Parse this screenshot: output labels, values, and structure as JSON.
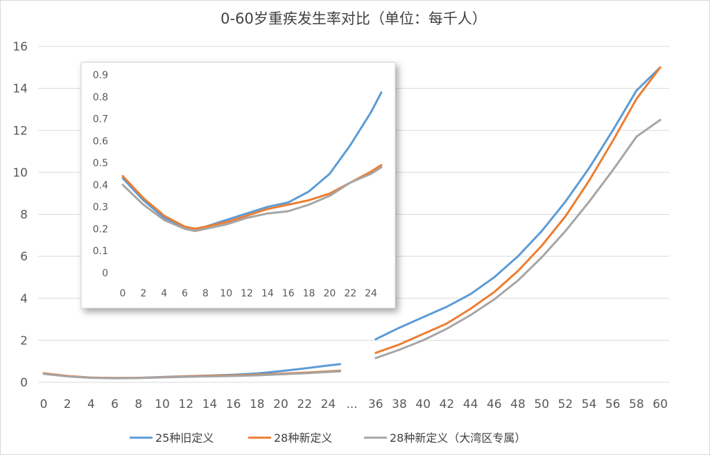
{
  "chart_data": [
    {
      "type": "line",
      "title": "0-60岁重疾发生率对比（单位：每千人）",
      "y_ticks": [
        "0",
        "2",
        "4",
        "6",
        "8",
        "10",
        "12",
        "14",
        "16"
      ],
      "ylim": [
        0,
        16
      ],
      "x_ticks": [
        "0",
        "2",
        "4",
        "6",
        "8",
        "10",
        "12",
        "14",
        "16",
        "18",
        "20",
        "22",
        "24",
        "...",
        "36",
        "38",
        "40",
        "42",
        "44",
        "46",
        "48",
        "50",
        "52",
        "54",
        "56",
        "58",
        "60"
      ],
      "axis_break_label": "...",
      "grid": true,
      "legend_position": "bottom",
      "segments": [
        {
          "x": [
            0,
            2,
            4,
            6,
            8,
            10,
            12,
            14,
            16,
            18,
            20,
            22,
            24,
            25
          ],
          "series": [
            {
              "name": "25种旧定义",
              "color": "#5b9bd5",
              "values": [
                0.42,
                0.29,
                0.22,
                0.2,
                0.21,
                0.25,
                0.29,
                0.32,
                0.36,
                0.42,
                0.53,
                0.66,
                0.8,
                0.86
              ]
            },
            {
              "name": "28种新定义",
              "color": "#ed7d31",
              "values": [
                0.43,
                0.3,
                0.22,
                0.2,
                0.21,
                0.24,
                0.28,
                0.31,
                0.33,
                0.36,
                0.41,
                0.46,
                0.52,
                0.55
              ]
            },
            {
              "name": "28种新定义（大湾区专属）",
              "color": "#a5a5a5",
              "values": [
                0.4,
                0.28,
                0.21,
                0.19,
                0.2,
                0.23,
                0.26,
                0.28,
                0.3,
                0.33,
                0.38,
                0.43,
                0.49,
                0.52
              ]
            }
          ]
        },
        {
          "x": [
            36,
            38,
            40,
            42,
            44,
            46,
            48,
            50,
            52,
            54,
            56,
            58,
            60
          ],
          "series": [
            {
              "name": "25种旧定义",
              "color": "#5b9bd5",
              "values": [
                2.05,
                2.6,
                3.1,
                3.6,
                4.2,
                5.0,
                6.0,
                7.2,
                8.6,
                10.2,
                12.0,
                13.9,
                15.0
              ]
            },
            {
              "name": "28种新定义",
              "color": "#ed7d31",
              "values": [
                1.4,
                1.8,
                2.3,
                2.8,
                3.5,
                4.3,
                5.3,
                6.5,
                7.9,
                9.6,
                11.5,
                13.5,
                15.0
              ]
            },
            {
              "name": "28种新定义（大湾区专属）",
              "color": "#a5a5a5",
              "values": [
                1.15,
                1.55,
                2.0,
                2.55,
                3.2,
                3.95,
                4.85,
                5.95,
                7.2,
                8.6,
                10.1,
                11.7,
                12.5
              ]
            }
          ]
        }
      ]
    },
    {
      "type": "line",
      "title": "",
      "y_ticks": [
        "0",
        "0.1",
        "0.2",
        "0.3",
        "0.4",
        "0.5",
        "0.6",
        "0.7",
        "0.8",
        "0.9"
      ],
      "ylim": [
        0,
        0.9
      ],
      "x_ticks": [
        "0",
        "2",
        "4",
        "6",
        "8",
        "10",
        "12",
        "14",
        "16",
        "18",
        "20",
        "22",
        "24"
      ],
      "xlim": [
        0,
        25
      ],
      "grid": false,
      "x": [
        0,
        2,
        4,
        6,
        7,
        8,
        10,
        12,
        14,
        16,
        18,
        20,
        22,
        24,
        25
      ],
      "series": [
        {
          "name": "25种旧定义",
          "color": "#5b9bd5",
          "values": [
            0.43,
            0.33,
            0.25,
            0.21,
            0.2,
            0.21,
            0.24,
            0.27,
            0.3,
            0.32,
            0.37,
            0.45,
            0.58,
            0.73,
            0.82
          ]
        },
        {
          "name": "28种新定义",
          "color": "#ed7d31",
          "values": [
            0.44,
            0.34,
            0.26,
            0.21,
            0.2,
            0.21,
            0.23,
            0.26,
            0.29,
            0.31,
            0.33,
            0.36,
            0.41,
            0.46,
            0.49
          ]
        },
        {
          "name": "28种新定义（大湾区专属）",
          "color": "#a5a5a5",
          "values": [
            0.4,
            0.31,
            0.24,
            0.2,
            0.19,
            0.2,
            0.22,
            0.25,
            0.27,
            0.28,
            0.31,
            0.35,
            0.41,
            0.45,
            0.48
          ]
        }
      ]
    }
  ]
}
